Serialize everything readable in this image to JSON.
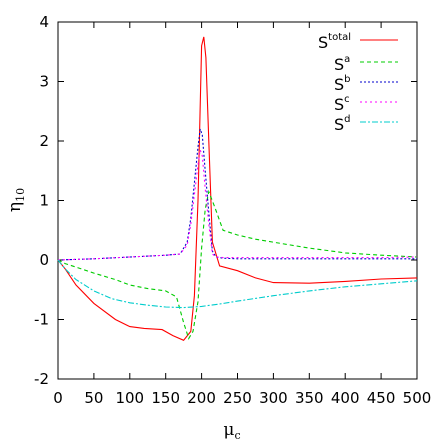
{
  "chart_data": {
    "type": "line",
    "title": "",
    "xlabel_main": "μ",
    "xlabel_sub": "c",
    "ylabel_main": "η",
    "ylabel_sub": "10",
    "xlim": [
      0,
      500
    ],
    "ylim": [
      -2,
      4
    ],
    "xticks": [
      0,
      50,
      100,
      150,
      200,
      250,
      300,
      350,
      400,
      450,
      500
    ],
    "yticks": [
      -2,
      -1,
      0,
      1,
      2,
      3,
      4
    ],
    "grid": false,
    "legend_position": "top-right",
    "series": [
      {
        "name": "S",
        "sup": "total",
        "color": "#ff0000",
        "dash": "none",
        "x": [
          0,
          10,
          25,
          50,
          80,
          100,
          120,
          145,
          160,
          175,
          185,
          190,
          195,
          200,
          203,
          206,
          210,
          215,
          225,
          250,
          275,
          300,
          350,
          400,
          450,
          500
        ],
        "y": [
          0,
          -0.15,
          -0.42,
          -0.73,
          -1.0,
          -1.12,
          -1.15,
          -1.17,
          -1.27,
          -1.35,
          -1.2,
          -0.6,
          1.0,
          3.6,
          3.75,
          3.4,
          2.0,
          0.3,
          -0.1,
          -0.18,
          -0.3,
          -0.38,
          -0.39,
          -0.36,
          -0.32,
          -0.3
        ]
      },
      {
        "name": "S",
        "sup": "a",
        "color": "#00cc00",
        "dash": "4,3",
        "x": [
          0,
          10,
          25,
          50,
          80,
          100,
          125,
          150,
          165,
          175,
          182,
          188,
          195,
          200,
          205,
          210,
          218,
          230,
          250,
          275,
          300,
          350,
          400,
          450,
          500
        ],
        "y": [
          0,
          -0.06,
          -0.12,
          -0.22,
          -0.33,
          -0.42,
          -0.48,
          -0.52,
          -0.62,
          -1.05,
          -1.32,
          -1.2,
          -0.7,
          0.2,
          0.85,
          1.15,
          0.9,
          0.5,
          0.42,
          0.35,
          0.3,
          0.2,
          0.12,
          0.08,
          0.05
        ]
      },
      {
        "name": "S",
        "sup": "b",
        "color": "#0000cc",
        "dash": "2,2",
        "x": [
          0,
          50,
          100,
          150,
          170,
          180,
          185,
          190,
          195,
          198,
          201,
          205,
          210,
          215,
          220,
          230,
          250,
          300,
          350,
          400,
          450,
          500
        ],
        "y": [
          0,
          0.02,
          0.05,
          0.08,
          0.1,
          0.3,
          0.7,
          1.3,
          1.9,
          2.2,
          2.1,
          1.5,
          0.8,
          0.15,
          0.05,
          0.03,
          0.02,
          0.02,
          0.02,
          0.02,
          0.02,
          0.02
        ]
      },
      {
        "name": "S",
        "sup": "c",
        "color": "#ff00ff",
        "dash": "2,3",
        "x": [
          0,
          50,
          100,
          150,
          170,
          180,
          185,
          190,
          195,
          198,
          201,
          205,
          210,
          215,
          220,
          230,
          250,
          300,
          350,
          400,
          450,
          500
        ],
        "y": [
          0,
          0.02,
          0.05,
          0.08,
          0.1,
          0.25,
          0.6,
          1.1,
          1.6,
          1.85,
          1.75,
          1.2,
          0.6,
          0.1,
          0.05,
          0.04,
          0.04,
          0.04,
          0.04,
          0.04,
          0.04,
          0.05
        ]
      },
      {
        "name": "S",
        "sup": "d",
        "color": "#00cccc",
        "dash": "6,2,2,2",
        "x": [
          0,
          10,
          25,
          50,
          75,
          100,
          125,
          150,
          175,
          200,
          225,
          250,
          300,
          350,
          400,
          450,
          500
        ],
        "y": [
          0,
          -0.15,
          -0.33,
          -0.52,
          -0.65,
          -0.72,
          -0.76,
          -0.79,
          -0.8,
          -0.78,
          -0.74,
          -0.69,
          -0.6,
          -0.52,
          -0.45,
          -0.4,
          -0.35
        ]
      }
    ]
  }
}
